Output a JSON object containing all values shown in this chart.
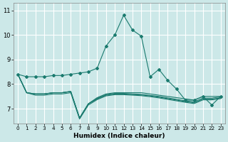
{
  "xlabel": "Humidex (Indice chaleur)",
  "xlim": [
    -0.5,
    23.5
  ],
  "ylim": [
    6.4,
    11.3
  ],
  "yticks": [
    7,
    8,
    9,
    10,
    11
  ],
  "xticks": [
    0,
    1,
    2,
    3,
    4,
    5,
    6,
    7,
    8,
    9,
    10,
    11,
    12,
    13,
    14,
    15,
    16,
    17,
    18,
    19,
    20,
    21,
    22,
    23
  ],
  "bg_color": "#cce8e8",
  "grid_color": "#ffffff",
  "line_color": "#1a7a6e",
  "line1_y": [
    8.4,
    8.3,
    8.3,
    8.3,
    8.35,
    8.35,
    8.4,
    8.45,
    8.5,
    8.65,
    9.55,
    10.0,
    10.8,
    10.2,
    9.95,
    8.3,
    8.6,
    8.15,
    7.8,
    7.35,
    7.35,
    7.5,
    7.15,
    7.5
  ],
  "line2_y": [
    8.4,
    7.65,
    7.6,
    7.6,
    7.65,
    7.65,
    7.7,
    6.62,
    7.2,
    7.45,
    7.6,
    7.65,
    7.65,
    7.65,
    7.65,
    7.6,
    7.55,
    7.5,
    7.45,
    7.4,
    7.35,
    7.5,
    7.5,
    7.5
  ],
  "line3_y": [
    8.4,
    7.65,
    7.6,
    7.6,
    7.65,
    7.65,
    7.7,
    6.62,
    7.2,
    7.42,
    7.57,
    7.62,
    7.62,
    7.6,
    7.58,
    7.54,
    7.5,
    7.44,
    7.38,
    7.32,
    7.28,
    7.43,
    7.43,
    7.48
  ],
  "line4_y": [
    8.4,
    7.65,
    7.6,
    7.6,
    7.65,
    7.65,
    7.7,
    6.62,
    7.2,
    7.4,
    7.55,
    7.6,
    7.6,
    7.58,
    7.56,
    7.52,
    7.47,
    7.41,
    7.35,
    7.29,
    7.24,
    7.39,
    7.39,
    7.44
  ],
  "line5_y": [
    8.4,
    7.65,
    7.55,
    7.55,
    7.6,
    7.6,
    7.65,
    6.58,
    7.15,
    7.37,
    7.52,
    7.57,
    7.57,
    7.55,
    7.53,
    7.49,
    7.44,
    7.38,
    7.32,
    7.26,
    7.21,
    7.36,
    7.36,
    7.41
  ]
}
